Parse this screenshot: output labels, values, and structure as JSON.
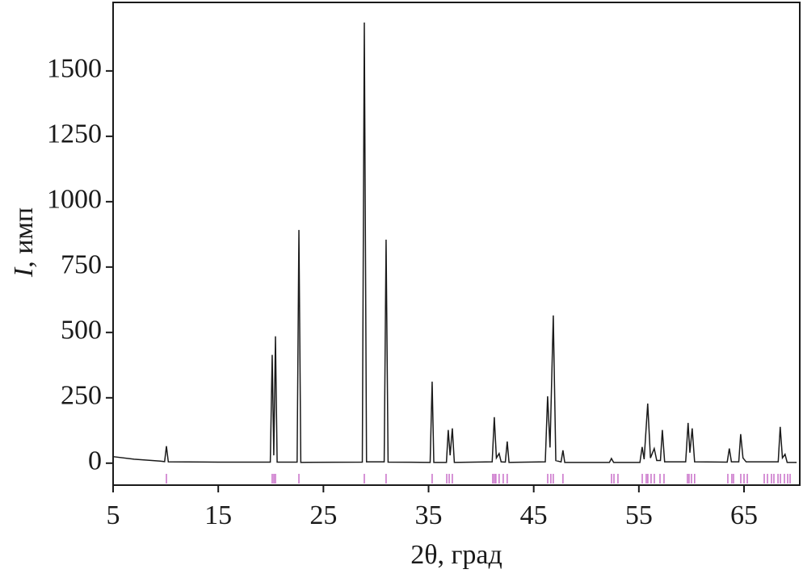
{
  "chart_data": {
    "type": "line",
    "x_label": "2θ, град",
    "y_label_var": "I",
    "y_label_unit": ", имп",
    "xlim": [
      5,
      70.3
    ],
    "ylim": [
      -84,
      1762
    ],
    "xticks": [
      5,
      15,
      25,
      35,
      45,
      55,
      65
    ],
    "yticks": [
      0,
      250,
      500,
      750,
      1000,
      1250,
      1500
    ],
    "series": [
      {
        "color": "#1a1a1a",
        "x": [
          5,
          7,
          9.5,
          9.9,
          10.07,
          10.25,
          15,
          19.95,
          20.13,
          20.28,
          20.44,
          20.6,
          22.5,
          22.67,
          22.85,
          28.7,
          28.89,
          29.1,
          30.78,
          30.96,
          31.15,
          35.15,
          35.34,
          35.5,
          36.7,
          36.87,
          37.05,
          37.26,
          37.45,
          41.05,
          41.25,
          41.45,
          41.71,
          41.9,
          42.3,
          42.48,
          42.65,
          46.1,
          46.32,
          46.55,
          46.86,
          47.1,
          47.6,
          47.78,
          47.95,
          52.2,
          52.39,
          52.6,
          55.1,
          55.31,
          55.5,
          55.84,
          56.1,
          56.46,
          56.7,
          57.05,
          57.23,
          57.45,
          59.45,
          59.68,
          59.85,
          60.07,
          60.3,
          63.4,
          63.6,
          63.8,
          64.5,
          64.68,
          64.9,
          65.2,
          68.25,
          68.44,
          68.65,
          68.9,
          69.1,
          70
        ],
        "values": [
          25,
          15,
          8,
          6,
          65,
          5,
          4,
          4,
          414,
          30,
          485,
          4,
          4,
          892,
          3,
          4,
          1685,
          5,
          5,
          855,
          4,
          3,
          312,
          3,
          3,
          127,
          30,
          133,
          3,
          5,
          176,
          20,
          37,
          5,
          4,
          83,
          3,
          5,
          256,
          60,
          565,
          10,
          5,
          49,
          3,
          3,
          18,
          3,
          3,
          62,
          15,
          228,
          20,
          56,
          10,
          10,
          127,
          5,
          5,
          154,
          40,
          133,
          5,
          4,
          56,
          5,
          5,
          111,
          20,
          5,
          5,
          139,
          20,
          34,
          3,
          3
        ]
      }
    ],
    "reference_color": "#c86ec8",
    "reference_positions": [
      10.07,
      20.13,
      20.29,
      20.44,
      22.67,
      28.89,
      30.96,
      35.34,
      36.73,
      36.96,
      37.26,
      41.1,
      41.25,
      41.4,
      41.71,
      42.1,
      42.48,
      46.33,
      46.63,
      46.86,
      47.78,
      52.4,
      52.63,
      53.01,
      55.32,
      55.7,
      55.85,
      56.16,
      56.47,
      57.01,
      57.39,
      59.62,
      59.77,
      60.0,
      60.3,
      63.46,
      63.84,
      64.0,
      64.69,
      65.0,
      65.31,
      66.92,
      67.23,
      67.61,
      67.84,
      68.23,
      68.46,
      68.84,
      69.15,
      69.38
    ]
  }
}
